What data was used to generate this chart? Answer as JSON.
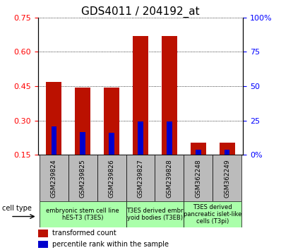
{
  "title": "GDS4011 / 204192_at",
  "samples": [
    "GSM239824",
    "GSM239825",
    "GSM239826",
    "GSM239827",
    "GSM239828",
    "GSM362248",
    "GSM362249"
  ],
  "transformed_counts": [
    0.47,
    0.445,
    0.443,
    0.67,
    0.67,
    0.205,
    0.205
  ],
  "percentile_ranks_pct": [
    21,
    16.5,
    16.0,
    24.5,
    24.5,
    4.0,
    4.0
  ],
  "ylim_left": [
    0.15,
    0.75
  ],
  "ylim_right": [
    0,
    100
  ],
  "yticks_left": [
    0.15,
    0.3,
    0.45,
    0.6,
    0.75
  ],
  "yticks_right": [
    0,
    25,
    50,
    75,
    100
  ],
  "ytick_labels_right": [
    "0%",
    "25",
    "50",
    "75",
    "100%"
  ],
  "bar_color_red": "#bb1100",
  "bar_color_blue": "#0000cc",
  "red_bar_width": 0.55,
  "blue_bar_width": 0.18,
  "cell_type_groups": [
    {
      "label": "embryonic stem cell line\nhES-T3 (T3ES)",
      "start": 0,
      "end": 2
    },
    {
      "label": "T3ES derived embr\nyoid bodies (T3EB)",
      "start": 3,
      "end": 4
    },
    {
      "label": "T3ES derived\npancreatic islet-like\ncells (T3pi)",
      "start": 5,
      "end": 6
    }
  ],
  "cell_type_bg": "#aaffaa",
  "cell_type_label": "cell type",
  "legend_red": "transformed count",
  "legend_blue": "percentile rank within the sample",
  "title_fontsize": 11,
  "tick_fontsize": 8,
  "sample_fontsize": 6.5,
  "ct_fontsize": 6,
  "bg_color_sample": "#bbbbbb"
}
